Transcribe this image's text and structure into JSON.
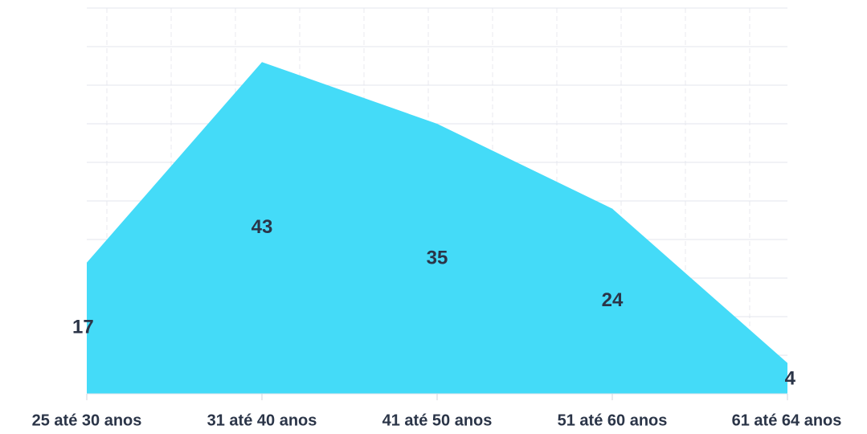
{
  "chart_data": {
    "type": "area",
    "categories": [
      "25 até 30 anos",
      "31 até 40 anos",
      "41 até 50 anos",
      "51 até 60 anos",
      "61 até 64 anos"
    ],
    "values": [
      17,
      43,
      35,
      24,
      4
    ],
    "color": "#44dbf8",
    "ylim": [
      0,
      50
    ],
    "yticks": [
      0,
      5,
      10,
      15,
      20,
      25,
      30,
      35,
      40,
      45,
      50
    ],
    "grid": true
  }
}
